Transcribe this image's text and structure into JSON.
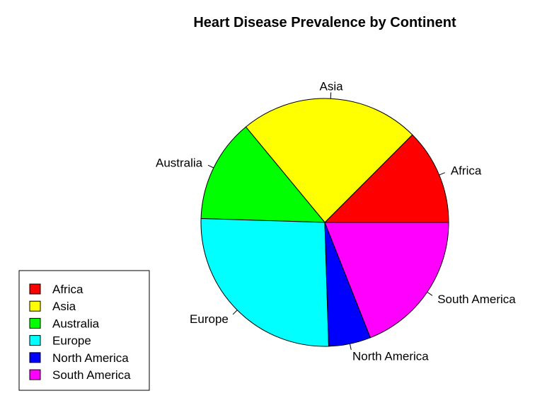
{
  "chart_data": {
    "type": "pie",
    "title": "Heart Disease Prevalence by Continent",
    "categories": [
      "Africa",
      "Asia",
      "Australia",
      "Europe",
      "North America",
      "South America"
    ],
    "values": [
      12.5,
      23.5,
      13.5,
      26.0,
      5.5,
      19.0
    ],
    "colors": [
      "#FF0000",
      "#FFFF00",
      "#00FF00",
      "#00FFFF",
      "#0000FF",
      "#FF00FF"
    ],
    "legend": {
      "position": "bottom-left",
      "entries": [
        "Africa",
        "Asia",
        "Australia",
        "Europe",
        "North America",
        "South America"
      ]
    }
  }
}
